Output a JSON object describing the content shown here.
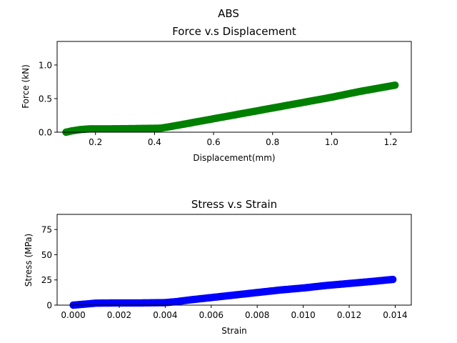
{
  "figure": {
    "suptitle": "ABS"
  },
  "chart_data": [
    {
      "type": "scatter",
      "title": "Force v.s Displacement",
      "xlabel": "Displacement(mm)",
      "ylabel": "Force (kN)",
      "xlim": [
        0.07,
        1.27
      ],
      "ylim": [
        0,
        1.35
      ],
      "xticks": [
        0.2,
        0.4,
        0.6,
        0.8,
        1.0,
        1.2
      ],
      "xtick_labels": [
        "0.2",
        "0.4",
        "0.6",
        "0.8",
        "1.0",
        "1.2"
      ],
      "yticks": [
        0.0,
        0.5,
        1.0
      ],
      "ytick_labels": [
        "0.0",
        "0.5",
        "1.0"
      ],
      "color": "#008000",
      "x_range": [
        0.1,
        1.215
      ],
      "points": [
        [
          0.1,
          0.0
        ],
        [
          0.12,
          0.02
        ],
        [
          0.15,
          0.04
        ],
        [
          0.18,
          0.05
        ],
        [
          0.25,
          0.05
        ],
        [
          0.35,
          0.055
        ],
        [
          0.42,
          0.06
        ],
        [
          0.45,
          0.08
        ],
        [
          0.5,
          0.12
        ],
        [
          0.6,
          0.2
        ],
        [
          0.7,
          0.28
        ],
        [
          0.8,
          0.36
        ],
        [
          0.9,
          0.44
        ],
        [
          1.0,
          0.52
        ],
        [
          1.1,
          0.61
        ],
        [
          1.215,
          0.7
        ]
      ]
    },
    {
      "type": "scatter",
      "title": "Stress v.s Strain",
      "xlabel": "Strain",
      "ylabel": "Stress (MPa)",
      "xlim": [
        -0.0007,
        0.0147
      ],
      "ylim": [
        0,
        90
      ],
      "xticks": [
        0.0,
        0.002,
        0.004,
        0.006,
        0.008,
        0.01,
        0.012,
        0.014
      ],
      "xtick_labels": [
        "0.000",
        "0.002",
        "0.004",
        "0.006",
        "0.008",
        "0.010",
        "0.012",
        "0.014"
      ],
      "yticks": [
        0,
        25,
        50,
        75
      ],
      "ytick_labels": [
        "0",
        "25",
        "50",
        "75"
      ],
      "color": "#0000ff",
      "x_range": [
        0.0,
        0.0139
      ],
      "points": [
        [
          0.0,
          0.0
        ],
        [
          0.0005,
          1.0
        ],
        [
          0.001,
          2.0
        ],
        [
          0.002,
          2.2
        ],
        [
          0.003,
          2.2
        ],
        [
          0.004,
          2.5
        ],
        [
          0.0045,
          3.5
        ],
        [
          0.005,
          5.0
        ],
        [
          0.006,
          7.5
        ],
        [
          0.007,
          10.0
        ],
        [
          0.008,
          12.5
        ],
        [
          0.009,
          15.0
        ],
        [
          0.01,
          17.0
        ],
        [
          0.011,
          19.5
        ],
        [
          0.012,
          21.5
        ],
        [
          0.013,
          23.5
        ],
        [
          0.0139,
          25.5
        ]
      ]
    }
  ]
}
